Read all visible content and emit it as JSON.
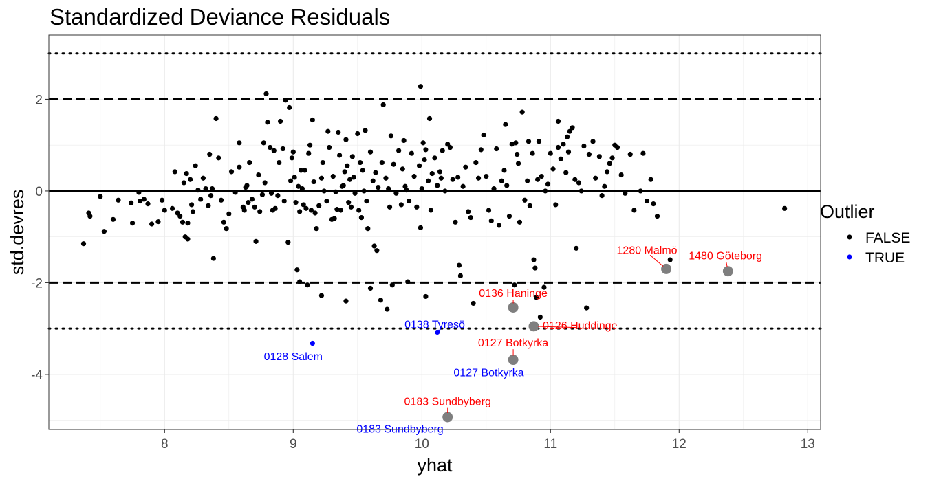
{
  "chart_data": {
    "type": "scatter",
    "title": "Standardized Deviance Residuals",
    "xlabel": "yhat",
    "ylabel": "std.devres",
    "xlim": [
      7.1,
      13.1
    ],
    "ylim": [
      -5.2,
      3.4
    ],
    "xticks": [
      8,
      9,
      10,
      11,
      12,
      13
    ],
    "yticks": [
      -4,
      -2,
      0,
      2
    ],
    "xtick_labels": [
      "8",
      "9",
      "10",
      "11",
      "12",
      "13"
    ],
    "ytick_labels": [
      "-4",
      "-2",
      "0",
      "2"
    ],
    "grid": true,
    "reference_lines": [
      {
        "y": 0,
        "style": "solid"
      },
      {
        "y": 2,
        "style": "dashed"
      },
      {
        "y": -2,
        "style": "dashed"
      },
      {
        "y": 3,
        "style": "dotted"
      },
      {
        "y": -3,
        "style": "dotted"
      }
    ],
    "legend": {
      "title": "Outlier",
      "position": "right",
      "entries": [
        {
          "label": "FALSE",
          "color": "#000000"
        },
        {
          "label": "TRUE",
          "color": "#0000ff"
        }
      ]
    },
    "series": [
      {
        "name": "FALSE",
        "color": "#000000",
        "points": [
          [
            7.37,
            -1.15
          ],
          [
            7.41,
            -0.48
          ],
          [
            7.42,
            -0.55
          ],
          [
            7.5,
            -0.12
          ],
          [
            7.53,
            -0.88
          ],
          [
            7.6,
            -0.62
          ],
          [
            7.64,
            -0.2
          ],
          [
            7.74,
            -0.26
          ],
          [
            7.75,
            -0.7
          ],
          [
            7.8,
            -0.03
          ],
          [
            7.81,
            -0.22
          ],
          [
            7.84,
            -0.18
          ],
          [
            7.87,
            -0.28
          ],
          [
            7.9,
            -0.72
          ],
          [
            7.95,
            -0.67
          ],
          [
            7.98,
            -0.2
          ],
          [
            8.0,
            -0.42
          ],
          [
            8.06,
            -0.38
          ],
          [
            8.08,
            0.42
          ],
          [
            8.1,
            -0.48
          ],
          [
            8.12,
            -0.55
          ],
          [
            8.14,
            -0.68
          ],
          [
            8.15,
            0.18
          ],
          [
            8.16,
            -1.0
          ],
          [
            8.17,
            0.38
          ],
          [
            8.18,
            -1.05
          ],
          [
            8.2,
            0.25
          ],
          [
            8.21,
            -0.3
          ],
          [
            8.22,
            -0.45
          ],
          [
            8.24,
            0.55
          ],
          [
            8.26,
            0.02
          ],
          [
            8.28,
            -0.18
          ],
          [
            8.3,
            0.28
          ],
          [
            8.32,
            0.05
          ],
          [
            8.34,
            -0.32
          ],
          [
            8.35,
            0.8
          ],
          [
            8.36,
            -0.1
          ],
          [
            8.37,
            0.05
          ],
          [
            8.38,
            -1.47
          ],
          [
            8.4,
            1.58
          ],
          [
            8.42,
            0.72
          ],
          [
            8.44,
            -0.2
          ],
          [
            8.46,
            -0.68
          ],
          [
            8.48,
            -0.82
          ],
          [
            8.5,
            -0.5
          ],
          [
            8.52,
            0.42
          ],
          [
            8.55,
            -0.03
          ],
          [
            8.58,
            0.52
          ],
          [
            8.61,
            -0.35
          ],
          [
            8.62,
            -0.42
          ],
          [
            8.63,
            0.08
          ],
          [
            8.64,
            0.12
          ],
          [
            8.65,
            -0.25
          ],
          [
            8.66,
            0.62
          ],
          [
            8.68,
            -0.18
          ],
          [
            8.7,
            -0.35
          ],
          [
            8.71,
            -1.1
          ],
          [
            8.73,
            0.35
          ],
          [
            8.74,
            -0.45
          ],
          [
            8.76,
            -0.08
          ],
          [
            8.77,
            1.05
          ],
          [
            8.78,
            0.18
          ],
          [
            8.79,
            2.12
          ],
          [
            8.8,
            1.5
          ],
          [
            8.82,
            0.95
          ],
          [
            8.83,
            -0.05
          ],
          [
            8.84,
            -0.42
          ],
          [
            8.85,
            0.88
          ],
          [
            8.86,
            -0.38
          ],
          [
            8.88,
            -0.1
          ],
          [
            8.89,
            0.62
          ],
          [
            8.9,
            1.52
          ],
          [
            8.92,
            0.92
          ],
          [
            8.93,
            -0.22
          ],
          [
            8.94,
            1.98
          ],
          [
            8.96,
            -1.12
          ],
          [
            8.97,
            1.82
          ],
          [
            8.98,
            0.22
          ],
          [
            8.99,
            0.72
          ],
          [
            9.0,
            0.85
          ],
          [
            9.01,
            0.3
          ],
          [
            9.02,
            -0.25
          ],
          [
            9.03,
            -1.72
          ],
          [
            9.04,
            0.1
          ],
          [
            9.05,
            -0.45
          ],
          [
            9.06,
            0.45
          ],
          [
            9.07,
            0.05
          ],
          [
            9.08,
            -0.3
          ],
          [
            9.09,
            0.45
          ],
          [
            9.1,
            -0.38
          ],
          [
            9.11,
            -2.05
          ],
          [
            9.12,
            0.82
          ],
          [
            9.13,
            1.0
          ],
          [
            9.14,
            -0.42
          ],
          [
            9.15,
            1.55
          ],
          [
            9.16,
            0.2
          ],
          [
            9.17,
            -0.48
          ],
          [
            9.18,
            -0.82
          ],
          [
            9.2,
            -0.32
          ],
          [
            9.22,
            0.28
          ],
          [
            9.23,
            0.62
          ],
          [
            9.24,
            0.0
          ],
          [
            9.26,
            -0.22
          ],
          [
            9.28,
            0.95
          ],
          [
            9.3,
            -0.62
          ],
          [
            9.31,
            0.32
          ],
          [
            9.32,
            -0.6
          ],
          [
            9.33,
            -0.02
          ],
          [
            9.34,
            -0.4
          ],
          [
            9.35,
            1.28
          ],
          [
            9.36,
            0.78
          ],
          [
            9.37,
            -0.42
          ],
          [
            9.38,
            0.1
          ],
          [
            9.39,
            0.12
          ],
          [
            9.4,
            0.42
          ],
          [
            9.41,
            1.12
          ],
          [
            9.42,
            0.55
          ],
          [
            9.43,
            -0.25
          ],
          [
            9.44,
            0.25
          ],
          [
            9.45,
            -0.35
          ],
          [
            9.46,
            0.75
          ],
          [
            9.47,
            0.3
          ],
          [
            9.48,
            -0.05
          ],
          [
            9.5,
            1.25
          ],
          [
            9.51,
            -0.42
          ],
          [
            9.52,
            0.62
          ],
          [
            9.53,
            -0.58
          ],
          [
            9.54,
            0.45
          ],
          [
            9.55,
            0.0
          ],
          [
            9.56,
            1.32
          ],
          [
            9.57,
            -0.22
          ],
          [
            9.58,
            -0.82
          ],
          [
            9.6,
            0.85
          ],
          [
            9.62,
            0.22
          ],
          [
            9.63,
            -1.2
          ],
          [
            9.64,
            0.4
          ],
          [
            9.65,
            -1.3
          ],
          [
            9.66,
            0.08
          ],
          [
            9.68,
            -2.38
          ],
          [
            9.69,
            0.62
          ],
          [
            9.7,
            1.88
          ],
          [
            9.72,
            0.28
          ],
          [
            9.74,
            0.05
          ],
          [
            9.75,
            -0.35
          ],
          [
            9.76,
            1.2
          ],
          [
            9.78,
            0.58
          ],
          [
            9.8,
            -0.05
          ],
          [
            9.82,
            0.88
          ],
          [
            9.84,
            -0.3
          ],
          [
            9.85,
            0.48
          ],
          [
            9.86,
            1.1
          ],
          [
            9.87,
            0.1
          ],
          [
            9.88,
            0.02
          ],
          [
            9.9,
            -0.22
          ],
          [
            9.92,
            0.82
          ],
          [
            9.94,
            0.32
          ],
          [
            9.96,
            -0.35
          ],
          [
            9.98,
            0.55
          ],
          [
            9.99,
            -0.8
          ],
          [
            10.0,
            0.05
          ],
          [
            10.01,
            1.05
          ],
          [
            10.02,
            0.68
          ],
          [
            10.03,
            0.9
          ],
          [
            10.05,
            0.22
          ],
          [
            10.06,
            1.58
          ],
          [
            10.07,
            -0.42
          ],
          [
            10.08,
            0.38
          ],
          [
            10.1,
            0.72
          ],
          [
            10.12,
            0.12
          ],
          [
            10.14,
            0.42
          ],
          [
            10.15,
            0.28
          ],
          [
            10.16,
            0.88
          ],
          [
            10.18,
            0.0
          ],
          [
            10.2,
            1.02
          ],
          [
            10.22,
            0.95
          ],
          [
            10.24,
            0.25
          ],
          [
            10.26,
            -0.68
          ],
          [
            10.28,
            0.3
          ],
          [
            10.29,
            -1.62
          ],
          [
            10.3,
            -1.85
          ],
          [
            10.32,
            0.1
          ],
          [
            10.34,
            0.52
          ],
          [
            10.36,
            -0.45
          ],
          [
            10.38,
            -0.58
          ],
          [
            10.4,
            -2.45
          ],
          [
            10.42,
            0.62
          ],
          [
            10.44,
            0.28
          ],
          [
            10.46,
            0.9
          ],
          [
            10.48,
            1.22
          ],
          [
            10.5,
            0.32
          ],
          [
            10.52,
            -0.42
          ],
          [
            10.54,
            -0.65
          ],
          [
            10.56,
            0.05
          ],
          [
            10.58,
            0.92
          ],
          [
            10.6,
            -0.75
          ],
          [
            10.62,
            0.22
          ],
          [
            10.64,
            0.45
          ],
          [
            10.66,
            0.12
          ],
          [
            10.68,
            -0.55
          ],
          [
            10.7,
            1.02
          ],
          [
            10.72,
            -2.05
          ],
          [
            10.74,
            0.8
          ],
          [
            10.75,
            0.6
          ],
          [
            10.76,
            -0.68
          ],
          [
            10.78,
            1.72
          ],
          [
            10.8,
            -0.2
          ],
          [
            10.82,
            0.22
          ],
          [
            10.84,
            -0.32
          ],
          [
            10.86,
            0.82
          ],
          [
            10.87,
            -1.5
          ],
          [
            10.88,
            -1.68
          ],
          [
            10.89,
            -2.32
          ],
          [
            10.9,
            0.25
          ],
          [
            10.91,
            1.08
          ],
          [
            10.92,
            -2.75
          ],
          [
            10.93,
            0.32
          ],
          [
            10.95,
            -2.1
          ],
          [
            10.96,
            0.0
          ],
          [
            10.98,
            0.15
          ],
          [
            11.0,
            0.82
          ],
          [
            11.02,
            0.48
          ],
          [
            11.04,
            -0.3
          ],
          [
            11.06,
            0.95
          ],
          [
            11.08,
            0.7
          ],
          [
            11.1,
            1.02
          ],
          [
            11.12,
            0.4
          ],
          [
            11.14,
            0.85
          ],
          [
            11.15,
            1.3
          ],
          [
            11.17,
            1.38
          ],
          [
            11.19,
            0.25
          ],
          [
            11.2,
            -1.25
          ],
          [
            11.22,
            0.18
          ],
          [
            11.24,
            0.0
          ],
          [
            11.26,
            0.98
          ],
          [
            11.28,
            -2.55
          ],
          [
            11.3,
            0.8
          ],
          [
            11.33,
            1.08
          ],
          [
            11.35,
            0.28
          ],
          [
            11.38,
            0.75
          ],
          [
            11.4,
            -0.1
          ],
          [
            11.42,
            0.1
          ],
          [
            11.44,
            0.42
          ],
          [
            11.46,
            0.6
          ],
          [
            11.48,
            0.72
          ],
          [
            11.5,
            1.0
          ],
          [
            11.52,
            0.95
          ],
          [
            11.55,
            0.35
          ],
          [
            11.58,
            -0.05
          ],
          [
            11.62,
            0.8
          ],
          [
            11.65,
            -0.42
          ],
          [
            11.7,
            0.0
          ],
          [
            11.72,
            0.82
          ],
          [
            11.75,
            -0.22
          ],
          [
            11.78,
            0.25
          ],
          [
            11.8,
            -0.28
          ],
          [
            11.83,
            -0.55
          ],
          [
            11.93,
            -1.5
          ],
          [
            12.82,
            -0.38
          ],
          [
            9.73,
            -2.58
          ],
          [
            9.22,
            -2.28
          ],
          [
            9.05,
            -1.98
          ],
          [
            9.99,
            2.28
          ],
          [
            9.89,
            -1.98
          ],
          [
            9.6,
            -2.12
          ],
          [
            9.77,
            -2.05
          ],
          [
            10.03,
            -2.3
          ],
          [
            9.41,
            -2.4
          ],
          [
            8.18,
            -0.7
          ],
          [
            8.58,
            1.05
          ],
          [
            9.27,
            1.3
          ],
          [
            10.65,
            1.45
          ],
          [
            10.73,
            1.05
          ],
          [
            10.83,
            1.08
          ],
          [
            11.06,
            1.52
          ],
          [
            11.13,
            1.18
          ]
        ]
      },
      {
        "name": "TRUE",
        "color": "#0000ff",
        "points": [
          [
            9.15,
            -3.32
          ],
          [
            10.12,
            -3.08
          ]
        ]
      }
    ],
    "highlighted_points": [
      {
        "x": 11.9,
        "y": -1.7
      },
      {
        "x": 12.38,
        "y": -1.75
      },
      {
        "x": 10.71,
        "y": -2.54
      },
      {
        "x": 10.87,
        "y": -2.95
      },
      {
        "x": 10.71,
        "y": -3.68
      },
      {
        "x": 10.2,
        "y": -4.93
      }
    ],
    "annotations": [
      {
        "text": "1280 Malmö",
        "x": 11.75,
        "y": -1.28,
        "color": "#ff0000",
        "point_x": 11.9,
        "point_y": -1.7
      },
      {
        "text": "1480 Göteborg",
        "x": 12.36,
        "y": -1.4,
        "color": "#ff0000",
        "point_x": 12.38,
        "point_y": -1.75
      },
      {
        "text": "0136 Haninge",
        "x": 10.71,
        "y": -2.22,
        "color": "#ff0000",
        "point_x": 10.71,
        "point_y": -2.54
      },
      {
        "text": "0126 Huddinge",
        "x": 11.23,
        "y": -2.92,
        "color": "#ff0000",
        "point_x": 10.87,
        "point_y": -2.95
      },
      {
        "text": "0127 Botkyrka",
        "x": 10.71,
        "y": -3.3,
        "color": "#ff0000",
        "point_x": 10.71,
        "point_y": -3.68
      },
      {
        "text": "0183 Sundbyberg",
        "x": 10.2,
        "y": -4.58,
        "color": "#ff0000",
        "point_x": 10.2,
        "point_y": -4.93
      },
      {
        "text": "0138 Tyresö",
        "x": 10.1,
        "y": -2.9,
        "color": "#0000ff"
      },
      {
        "text": "0128 Salem",
        "x": 9.0,
        "y": -3.6,
        "color": "#0000ff"
      },
      {
        "text": "0127 Botkyrka",
        "x": 10.52,
        "y": -3.95,
        "color": "#0000ff"
      },
      {
        "text": "0183 Sundbyberg",
        "x": 9.83,
        "y": -5.18,
        "color": "#0000ff"
      }
    ]
  }
}
